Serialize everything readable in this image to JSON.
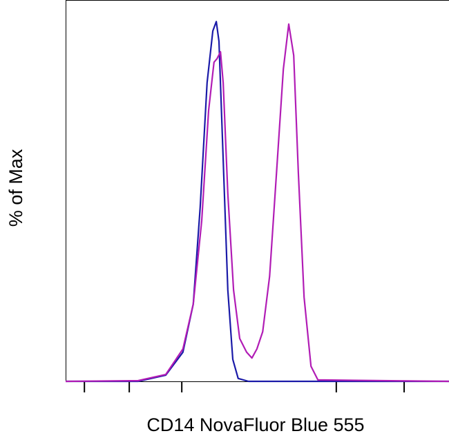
{
  "chart_data": {
    "type": "line",
    "xlabel": "CD14 NovaFluor Blue 555",
    "ylabel": "% of Max",
    "xlim": [
      0,
      100
    ],
    "ylim": [
      0,
      106
    ],
    "xticks": [
      4.9,
      16.6,
      30.3,
      70.6,
      88.3
    ],
    "series": [
      {
        "color": "#1a1aa8",
        "x": [
          0,
          18.9,
          26.1,
          30.6,
          33.3,
          35.1,
          36.9,
          38.4,
          39.3,
          40.0,
          40.9,
          42.3,
          43.6,
          45.0,
          47.7,
          100
        ],
        "values": [
          0,
          0,
          1.7,
          8.1,
          21.5,
          48.4,
          83.0,
          97.4,
          100,
          94.5,
          67.6,
          25.4,
          6.1,
          0.8,
          0,
          0
        ]
      },
      {
        "color": "#b11cb5",
        "x": [
          0,
          18.9,
          26.1,
          30.6,
          33.3,
          35.5,
          37.3,
          38.7,
          39.5,
          40.4,
          41.1,
          42.3,
          43.8,
          45.4,
          47.2,
          48.6,
          49.9,
          51.4,
          53.2,
          55.0,
          56.8,
          58.2,
          59.5,
          60.7,
          62.2,
          64.0,
          65.8,
          100
        ],
        "values": [
          0,
          0.2,
          1.9,
          9.0,
          21.5,
          44.6,
          75.3,
          88.7,
          89.7,
          91.6,
          83.0,
          52.2,
          25.4,
          11.9,
          8.1,
          6.5,
          9.0,
          13.8,
          29.2,
          58.0,
          86.8,
          99.3,
          90.6,
          58.0,
          23.4,
          4.2,
          0.4,
          0
        ]
      }
    ]
  }
}
